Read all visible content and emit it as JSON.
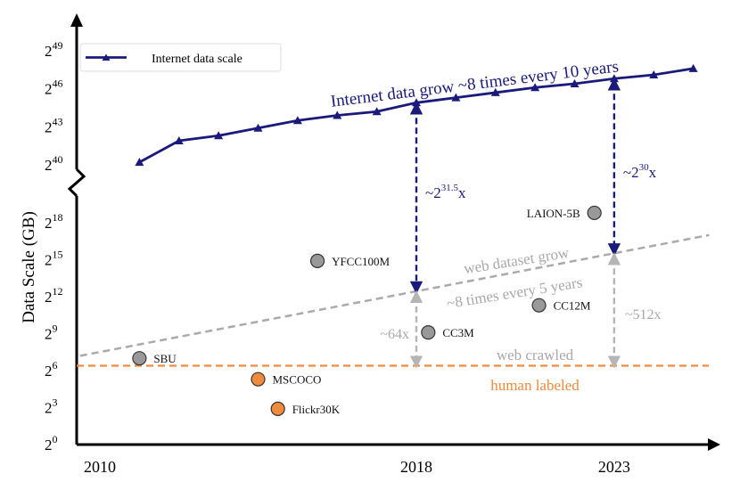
{
  "chart_data": {
    "type": "line+scatter",
    "ylabel": "Data Scale (GB)",
    "x_ticks": [
      "2010",
      "2018",
      "2023"
    ],
    "y_ticks_upper": [
      {
        "base": "2",
        "exp": "40"
      },
      {
        "base": "2",
        "exp": "43"
      },
      {
        "base": "2",
        "exp": "46"
      },
      {
        "base": "2",
        "exp": "49"
      }
    ],
    "y_ticks_lower": [
      {
        "base": "2",
        "exp": "0"
      },
      {
        "base": "2",
        "exp": "3"
      },
      {
        "base": "2",
        "exp": "6"
      },
      {
        "base": "2",
        "exp": "9"
      },
      {
        "base": "2",
        "exp": "12"
      },
      {
        "base": "2",
        "exp": "15"
      },
      {
        "base": "2",
        "exp": "18"
      }
    ],
    "legend": {
      "label": "Internet data scale",
      "position": "top-left"
    },
    "internet_series": {
      "name": "Internet data scale",
      "x": [
        2011,
        2012,
        2013,
        2014,
        2015,
        2016,
        2017,
        2018,
        2019,
        2020,
        2021,
        2022,
        2023,
        2024,
        2025
      ],
      "log2_values": [
        40.2,
        41.9,
        42.3,
        42.9,
        43.5,
        43.9,
        44.2,
        44.9,
        45.3,
        45.7,
        46.1,
        46.4,
        46.8,
        47.1,
        47.6
      ]
    },
    "datasets": [
      {
        "name": "SBU",
        "year": 2011,
        "log2_size": 7.0,
        "category": "web crawled"
      },
      {
        "name": "MSCOCO",
        "year": 2014,
        "log2_size": 5.3,
        "category": "human labeled"
      },
      {
        "name": "Flickr30K",
        "year": 2014.5,
        "log2_size": 2.9,
        "category": "human labeled"
      },
      {
        "name": "YFCC100M",
        "year": 2015.5,
        "log2_size": 14.9,
        "category": "web crawled"
      },
      {
        "name": "CC3M",
        "year": 2018.3,
        "log2_size": 9.1,
        "category": "web crawled"
      },
      {
        "name": "CC12M",
        "year": 2021.1,
        "log2_size": 11.3,
        "category": "web crawled"
      },
      {
        "name": "LAION-5B",
        "year": 2022.5,
        "log2_size": 18.8,
        "category": "web crawled"
      }
    ],
    "trend_web": {
      "label_line1": "web dataset grow",
      "label_line2": "~8 times every 5 years",
      "from": {
        "year": 2009.5,
        "log2": 7.2
      },
      "to": {
        "year": 2025.4,
        "log2": 17.0
      }
    },
    "human_line": {
      "log2": 6.4,
      "label_above": "web crawled",
      "label_below": "human labeled"
    },
    "growth_label": "Internet data grow ~8 times every 10 years",
    "gap_arrows": [
      {
        "year": 2018,
        "top_label": {
          "prefix": "~2",
          "exp": "31.5",
          "suffix": "x"
        },
        "bottom_label": "~64x"
      },
      {
        "year": 2023,
        "top_label": {
          "prefix": "~2",
          "exp": "30",
          "suffix": "x"
        },
        "bottom_label": "~512x"
      }
    ],
    "colors": {
      "internet": "#1a1a7a",
      "gray_marker": "#999999",
      "orange_marker": "#f08a3c",
      "orange_line": "#f08a3c",
      "gray_line": "#aaaaaa",
      "label_gray": "#a8a8a8",
      "label_orange": "#f08a3c",
      "label_navy": "#1a1a7a"
    }
  }
}
